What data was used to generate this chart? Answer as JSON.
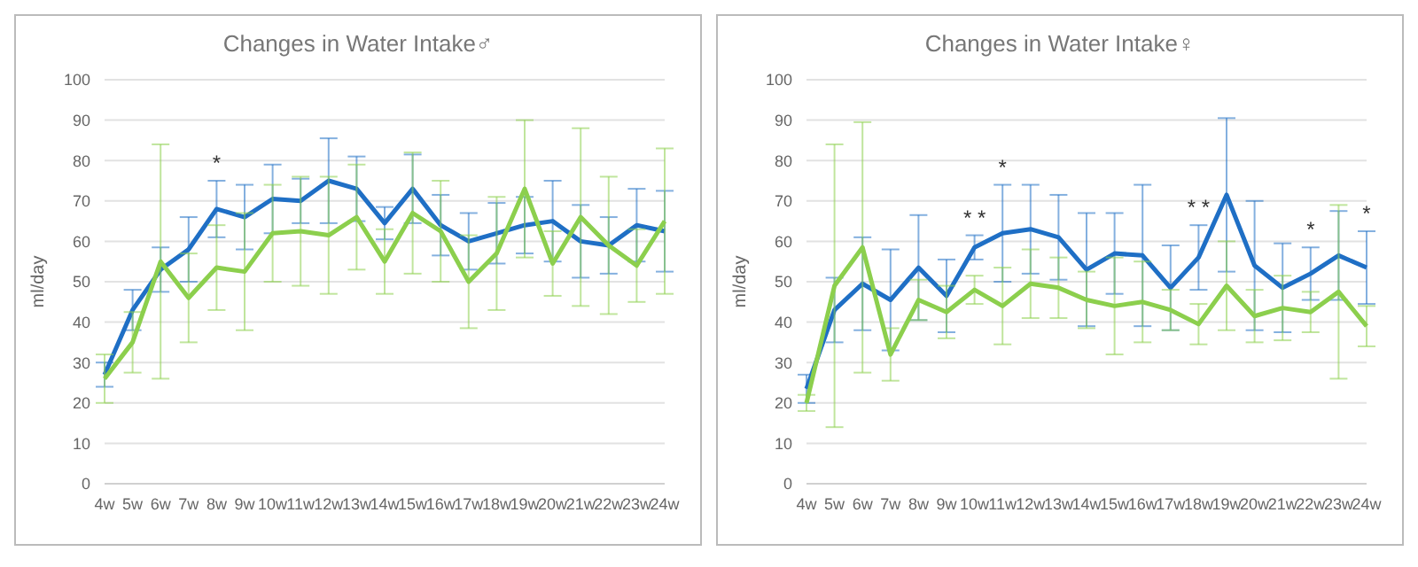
{
  "chart_data": [
    {
      "type": "line",
      "title": "Changes in Water Intake♂",
      "ylabel": "ml/day",
      "categories": [
        "4w",
        "5w",
        "6w",
        "7w",
        "8w",
        "9w",
        "10w",
        "11w",
        "12w",
        "13w",
        "14w",
        "15w",
        "16w",
        "17w",
        "18w",
        "19w",
        "20w",
        "21w",
        "22w",
        "23w",
        "24w"
      ],
      "series": [
        {
          "color": "#1f6fc5",
          "values": [
            27,
            43,
            53,
            58,
            68,
            66,
            70.5,
            70,
            75,
            73,
            64.5,
            73,
            64,
            60,
            62,
            64,
            65,
            60,
            59,
            64,
            62.5
          ],
          "errors": [
            3,
            5,
            5.5,
            8,
            7,
            8,
            8.5,
            5.5,
            10.5,
            8,
            4,
            8.5,
            7.5,
            7,
            7.5,
            7,
            10,
            9,
            7,
            9,
            10
          ]
        },
        {
          "color": "#8ccf4d",
          "values": [
            26,
            35,
            55,
            46,
            53.5,
            52.5,
            62,
            62.5,
            61.5,
            66,
            55,
            67,
            62.5,
            50,
            57,
            73,
            54.5,
            66,
            59,
            54,
            65
          ],
          "errors": [
            6,
            7.5,
            29,
            11,
            10.5,
            14.5,
            12,
            13.5,
            14.5,
            13,
            8,
            15,
            12.5,
            11.5,
            14,
            17,
            8,
            22,
            17,
            9,
            18
          ]
        }
      ],
      "ylim": [
        0,
        100
      ],
      "yticks": [
        0,
        10,
        20,
        30,
        40,
        50,
        60,
        70,
        80,
        90,
        100
      ],
      "grid": "y",
      "legend": false,
      "marker": "none",
      "line_style": "solid",
      "annotations": [
        {
          "text": "*",
          "x": "8w",
          "y": 75
        }
      ]
    },
    {
      "type": "line",
      "title": "Changes in Water Intake♀",
      "ylabel": "ml/day",
      "categories": [
        "4w",
        "5w",
        "6w",
        "7w",
        "8w",
        "9w",
        "10w",
        "11w",
        "12w",
        "13w",
        "14w",
        "15w",
        "16w",
        "17w",
        "18w",
        "19w",
        "20w",
        "21w",
        "22w",
        "23w",
        "24w"
      ],
      "series": [
        {
          "color": "#1f6fc5",
          "values": [
            23.5,
            43,
            49.5,
            45.5,
            53.5,
            46.5,
            58.5,
            62,
            63,
            61,
            53,
            57,
            56.5,
            48.5,
            56,
            71.5,
            54,
            48.5,
            52,
            56.5,
            53.5
          ],
          "errors": [
            3.5,
            8,
            11.5,
            12.5,
            13,
            9,
            3,
            12,
            11,
            10.5,
            14,
            10,
            17.5,
            10.5,
            8,
            19,
            16,
            11,
            6.5,
            11,
            9
          ]
        },
        {
          "color": "#8ccf4d",
          "values": [
            20,
            49,
            58.5,
            32,
            45.5,
            42.5,
            48,
            44,
            49.5,
            48.5,
            45.5,
            44,
            45,
            43,
            39.5,
            49,
            41.5,
            43.5,
            42.5,
            47.5,
            39
          ],
          "errors": [
            2,
            35,
            31,
            6.5,
            5,
            6.5,
            3.5,
            9.5,
            8.5,
            7.5,
            7,
            12,
            10,
            5,
            5,
            11,
            6.5,
            8,
            5,
            21.5,
            5
          ]
        }
      ],
      "ylim": [
        0,
        100
      ],
      "yticks": [
        0,
        10,
        20,
        30,
        40,
        50,
        60,
        70,
        80,
        90,
        100
      ],
      "grid": "y",
      "legend": false,
      "marker": "none",
      "line_style": "solid",
      "annotations": [
        {
          "text": "* *",
          "x": "10w",
          "y": 61.5
        },
        {
          "text": "*",
          "x": "11w",
          "y": 74
        },
        {
          "text": "* *",
          "x": "18w",
          "y": 64
        },
        {
          "text": "*",
          "x": "22w",
          "y": 58.5
        },
        {
          "text": "*",
          "x": "24w",
          "y": 62.5
        }
      ]
    }
  ]
}
